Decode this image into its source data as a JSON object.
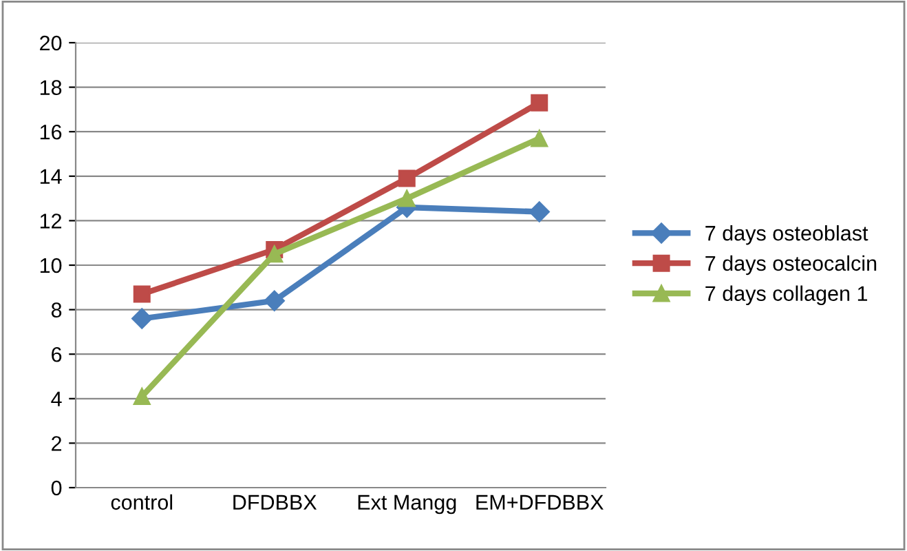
{
  "chart_data": {
    "type": "line",
    "categories": [
      "control",
      "DFDBBX",
      "Ext Mangg",
      "EM+DFDBBX"
    ],
    "series": [
      {
        "name": "7 days osteoblast",
        "color": "#4a7ebb",
        "marker": "diamond",
        "values": [
          7.6,
          8.4,
          12.6,
          12.4
        ]
      },
      {
        "name": "7 days osteocalcin",
        "color": "#be4b48",
        "marker": "square",
        "values": [
          8.7,
          10.7,
          13.9,
          17.3
        ]
      },
      {
        "name": "7 days collagen 1",
        "color": "#98b954",
        "marker": "triangle",
        "values": [
          4.1,
          10.5,
          13.0,
          15.7
        ]
      }
    ],
    "ylim": [
      0,
      20
    ],
    "yticks": [
      0,
      2,
      4,
      6,
      8,
      10,
      12,
      14,
      16,
      18,
      20
    ],
    "grid": "y",
    "legend": "right"
  }
}
